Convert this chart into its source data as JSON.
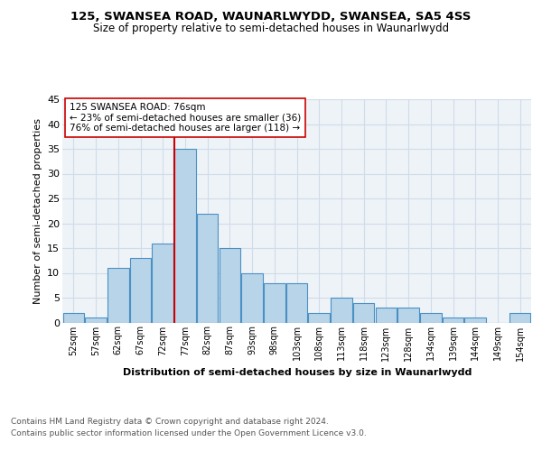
{
  "title": "125, SWANSEA ROAD, WAUNARLWYDD, SWANSEA, SA5 4SS",
  "subtitle": "Size of property relative to semi-detached houses in Waunarlwydd",
  "xlabel": "Distribution of semi-detached houses by size in Waunarlwydd",
  "ylabel": "Number of semi-detached properties",
  "bins": [
    "52sqm",
    "57sqm",
    "62sqm",
    "67sqm",
    "72sqm",
    "77sqm",
    "82sqm",
    "87sqm",
    "93sqm",
    "98sqm",
    "103sqm",
    "108sqm",
    "113sqm",
    "118sqm",
    "123sqm",
    "128sqm",
    "134sqm",
    "139sqm",
    "144sqm",
    "149sqm",
    "154sqm"
  ],
  "counts": [
    2,
    1,
    11,
    13,
    16,
    35,
    22,
    15,
    10,
    8,
    8,
    2,
    5,
    4,
    3,
    3,
    2,
    1,
    1,
    0,
    2
  ],
  "bar_color": "#b8d4e8",
  "bar_edge_color": "#4a90c4",
  "vline_color": "#cc0000",
  "annotation_text": "125 SWANSEA ROAD: 76sqm\n← 23% of semi-detached houses are smaller (36)\n76% of semi-detached houses are larger (118) →",
  "annotation_box_color": "#ffffff",
  "annotation_box_edge": "#cc0000",
  "ylim": [
    0,
    45
  ],
  "yticks": [
    0,
    5,
    10,
    15,
    20,
    25,
    30,
    35,
    40,
    45
  ],
  "grid_color": "#d0dce8",
  "bg_color": "#eef3f8",
  "footer1": "Contains HM Land Registry data © Crown copyright and database right 2024.",
  "footer2": "Contains public sector information licensed under the Open Government Licence v3.0."
}
